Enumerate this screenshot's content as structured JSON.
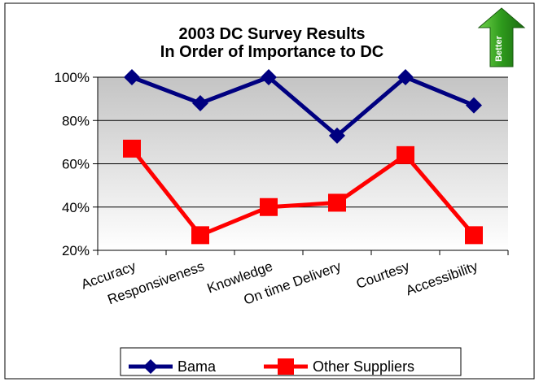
{
  "chart_data": {
    "type": "line",
    "title_lines": [
      "2003 DC Survey Results",
      "In Order of Importance to DC"
    ],
    "categories": [
      "Accuracy",
      "Responsiveness",
      "Knowledge",
      "On time Delivery",
      "Courtesy",
      "Accessibility"
    ],
    "series": [
      {
        "name": "Bama",
        "values": [
          100,
          88,
          100,
          73,
          100,
          87
        ],
        "color": "#000080",
        "marker": "diamond"
      },
      {
        "name": "Other Suppliers",
        "values": [
          67,
          27,
          40,
          42,
          64,
          27
        ],
        "color": "#ff0000",
        "marker": "square"
      }
    ],
    "y_ticks": [
      "100%",
      "80%",
      "60%",
      "40%",
      "20%"
    ],
    "y_tick_values": [
      100,
      80,
      60,
      40,
      20
    ],
    "ylim": [
      20,
      100
    ],
    "grid": true,
    "legend_position": "bottom",
    "badge": {
      "label": "Better",
      "icon": "up-arrow-icon",
      "color": "#2e8b1e"
    }
  }
}
